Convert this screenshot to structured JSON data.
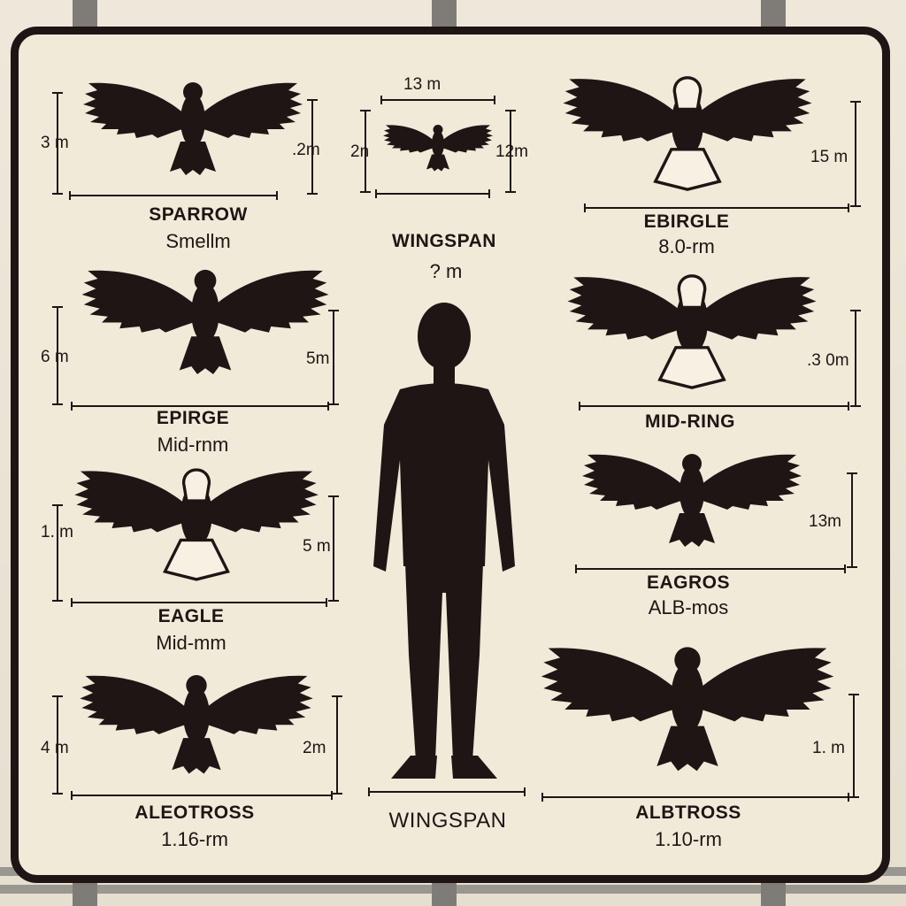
{
  "colors": {
    "ink": "#1f1514",
    "board": "#f1ead9",
    "post": "#7f7c78"
  },
  "center": {
    "top_measure": "13 m",
    "left_measure": "2n",
    "right_measure": "12m",
    "heading": "WINGSPAN",
    "heading_value": "? m",
    "bottom_label": "WINGSPAN",
    "figure_icon": "human-silhouette-icon"
  },
  "left_birds": [
    {
      "name": "SPARROW",
      "span": "Smellm",
      "left_measure": "3 m",
      "right_measure": ".2m",
      "icon": "bird-silhouette-icon"
    },
    {
      "name": "EPIRGE",
      "span": "Mid-rnm",
      "left_measure": "6 m",
      "right_measure": "5m",
      "icon": "bird-silhouette-icon"
    },
    {
      "name": "EAGLE",
      "span": "Mid-mm",
      "left_measure": "1. m",
      "right_measure": "5 m",
      "icon": "bird-silhouette-icon"
    },
    {
      "name": "ALEOTROSS",
      "span": "1.16-rm",
      "left_measure": "4 m",
      "right_measure": "2m",
      "icon": "bird-silhouette-icon"
    }
  ],
  "right_birds": [
    {
      "name": "EBIRGLE",
      "span": "8.0-rm",
      "right_measure": "15 m",
      "icon": "eagle-silhouette-icon"
    },
    {
      "name": "MID-RING",
      "span": "",
      "right_measure": ".3 0m",
      "icon": "eagle-silhouette-icon"
    },
    {
      "name": "EAGROS",
      "span": "ALB-mos",
      "right_measure": "13m",
      "icon": "bird-silhouette-icon"
    },
    {
      "name": "ALBTROSS",
      "span": "1.10-rm",
      "right_measure": "1. m",
      "icon": "vulture-silhouette-icon"
    }
  ]
}
